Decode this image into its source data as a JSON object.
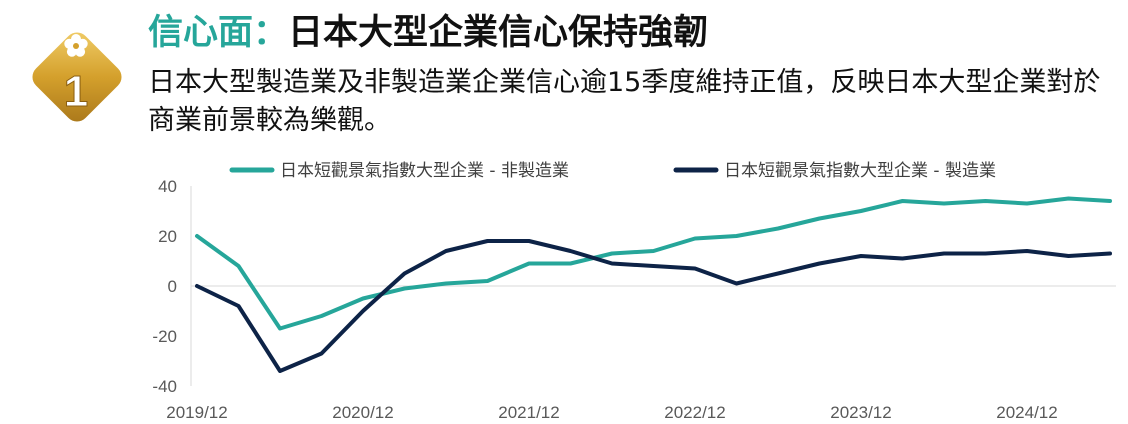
{
  "header": {
    "badge_number": "1",
    "title_accent": "信心面：",
    "title_main": "日本大型企業信心保持強韌",
    "subtitle": "日本大型製造業及非製造業企業信心逾15季度維持正值，反映日本大型企業對於商業前景較為樂觀。"
  },
  "colors": {
    "teal": "#26a69a",
    "navy": "#0d2347",
    "badge_gold": "#d4a02c"
  },
  "chart_data": {
    "type": "line",
    "title": "",
    "xlabel": "",
    "ylabel": "",
    "x": [
      "2019/12",
      "2020/03",
      "2020/06",
      "2020/09",
      "2020/12",
      "2021/03",
      "2021/06",
      "2021/09",
      "2021/12",
      "2022/03",
      "2022/06",
      "2022/09",
      "2022/12",
      "2023/03",
      "2023/06",
      "2023/09",
      "2023/12",
      "2024/03",
      "2024/06",
      "2024/09",
      "2024/12",
      "2025/03",
      "2025/06"
    ],
    "x_tick_labels": [
      "2019/12",
      "2020/12",
      "2021/12",
      "2022/12",
      "2023/12",
      "2024/12"
    ],
    "ylim": [
      -40,
      40
    ],
    "y_ticks": [
      "40",
      "20",
      "0",
      "-20",
      "-40"
    ],
    "legend_position": "top",
    "grid": false,
    "series": [
      {
        "name": "日本短觀景氣指數大型企業 - 非製造業",
        "color": "#26a69a",
        "values": [
          20,
          8,
          -17,
          -12,
          -5,
          -1,
          1,
          2,
          9,
          9,
          13,
          14,
          19,
          20,
          23,
          27,
          30,
          34,
          33,
          34,
          33,
          35,
          34
        ]
      },
      {
        "name": "日本短觀景氣指數大型企業 - 製造業",
        "color": "#0d2347",
        "values": [
          0,
          -8,
          -34,
          -27,
          -10,
          5,
          14,
          18,
          18,
          14,
          9,
          8,
          7,
          1,
          5,
          9,
          12,
          11,
          13,
          13,
          14,
          12,
          13
        ]
      }
    ]
  }
}
